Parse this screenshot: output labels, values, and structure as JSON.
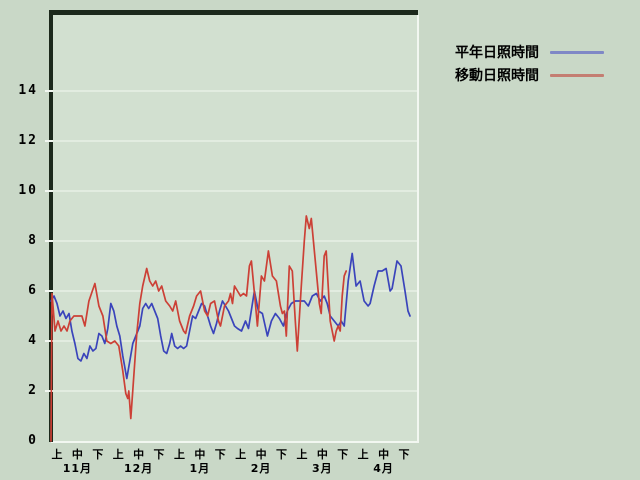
{
  "colors": {
    "bg_outer": "#c9d8c7",
    "bg_plot": "#d2e0d0",
    "frame_dark": "#1c291c",
    "frame_light": "#f2f7f1",
    "grid": "#e7efe5",
    "text": "#000000",
    "series_normal": "#3a44bb",
    "series_moving": "#cc4036",
    "legend_normal_swatch": "#7f88c6",
    "legend_moving_swatch": "#c47e72"
  },
  "legend": {
    "items": [
      {
        "label": "平年日照時間",
        "swatch_color": "#7f88c6"
      },
      {
        "label": "移動日照時間",
        "swatch_color": "#c47e72"
      }
    ]
  },
  "chart_data": {
    "type": "line",
    "title": "",
    "xlabel": "",
    "ylabel": "",
    "grid": "horizontal",
    "legend_position": "top-right-outside",
    "y_axis": {
      "ticks": [
        0,
        2,
        4,
        6,
        8,
        10,
        12,
        14
      ],
      "min": 0,
      "max": 17.2,
      "unit": "hours"
    },
    "x_axis": {
      "domain_days": [
        0,
        180
      ],
      "tick_labels": [
        "上",
        "中",
        "下",
        "上",
        "中",
        "下",
        "上",
        "中",
        "下",
        "上",
        "中",
        "下",
        "上",
        "中",
        "下",
        "上",
        "中",
        "下"
      ],
      "month_labels": [
        "11月",
        "12月",
        "1月",
        "2月",
        "3月",
        "4月"
      ],
      "month_tick_index": [
        1,
        4,
        7,
        10,
        13,
        16
      ]
    },
    "series": [
      {
        "name": "平年日照時間",
        "color": "#3a44bb",
        "points": [
          [
            0,
            5.6
          ],
          [
            1.5,
            5.8
          ],
          [
            3,
            5.5
          ],
          [
            4.5,
            5.0
          ],
          [
            6,
            5.2
          ],
          [
            7.5,
            4.9
          ],
          [
            9,
            5.1
          ],
          [
            10.5,
            4.4
          ],
          [
            12,
            3.9
          ],
          [
            13.5,
            3.3
          ],
          [
            15,
            3.2
          ],
          [
            16.5,
            3.5
          ],
          [
            18,
            3.3
          ],
          [
            19.5,
            3.8
          ],
          [
            21,
            3.6
          ],
          [
            22.5,
            3.7
          ],
          [
            24,
            4.3
          ],
          [
            25.5,
            4.2
          ],
          [
            27,
            3.9
          ],
          [
            28.5,
            4.5
          ],
          [
            30,
            5.5
          ],
          [
            31.5,
            5.2
          ],
          [
            33,
            4.6
          ],
          [
            34.5,
            4.2
          ],
          [
            36,
            3.4
          ],
          [
            38,
            2.5
          ],
          [
            39.5,
            3.2
          ],
          [
            41,
            3.9
          ],
          [
            42.5,
            4.2
          ],
          [
            44.5,
            4.6
          ],
          [
            46,
            5.3
          ],
          [
            47.5,
            5.5
          ],
          [
            49,
            5.3
          ],
          [
            50.5,
            5.5
          ],
          [
            52,
            5.2
          ],
          [
            53.5,
            4.9
          ],
          [
            55,
            4.2
          ],
          [
            56.5,
            3.6
          ],
          [
            58,
            3.5
          ],
          [
            59.5,
            3.9
          ],
          [
            60.5,
            4.3
          ],
          [
            62,
            3.8
          ],
          [
            63.5,
            3.7
          ],
          [
            65,
            3.8
          ],
          [
            66.5,
            3.7
          ],
          [
            68,
            3.8
          ],
          [
            69.5,
            4.4
          ],
          [
            71,
            5.0
          ],
          [
            72.5,
            4.9
          ],
          [
            74,
            5.2
          ],
          [
            75.5,
            5.5
          ],
          [
            77,
            5.4
          ],
          [
            78.5,
            5.0
          ],
          [
            80,
            4.6
          ],
          [
            81.5,
            4.3
          ],
          [
            83,
            4.7
          ],
          [
            84.5,
            5.2
          ],
          [
            86,
            5.6
          ],
          [
            87.5,
            5.4
          ],
          [
            89,
            5.2
          ],
          [
            90.5,
            4.9
          ],
          [
            92,
            4.6
          ],
          [
            93.5,
            4.5
          ],
          [
            95.5,
            4.4
          ],
          [
            97.5,
            4.8
          ],
          [
            99,
            4.5
          ],
          [
            102,
            6.0
          ],
          [
            104,
            5.2
          ],
          [
            106,
            5.1
          ],
          [
            108.5,
            4.2
          ],
          [
            110.5,
            4.8
          ],
          [
            112.5,
            5.1
          ],
          [
            114.5,
            4.9
          ],
          [
            116.5,
            4.6
          ],
          [
            118.5,
            5.2
          ],
          [
            120.5,
            5.5
          ],
          [
            122.5,
            5.6
          ],
          [
            124.5,
            5.6
          ],
          [
            127,
            5.6
          ],
          [
            129,
            5.4
          ],
          [
            131,
            5.8
          ],
          [
            133,
            5.9
          ],
          [
            135,
            5.6
          ],
          [
            137,
            5.8
          ],
          [
            138.5,
            5.5
          ],
          [
            140,
            5.0
          ],
          [
            142,
            4.8
          ],
          [
            144,
            4.6
          ],
          [
            145.5,
            4.8
          ],
          [
            147,
            4.6
          ],
          [
            149,
            6.4
          ],
          [
            151,
            7.5
          ],
          [
            153,
            6.2
          ],
          [
            155,
            6.4
          ],
          [
            157,
            5.6
          ],
          [
            159,
            5.4
          ],
          [
            160,
            5.5
          ],
          [
            162,
            6.2
          ],
          [
            164,
            6.8
          ],
          [
            166,
            6.8
          ],
          [
            168,
            6.9
          ],
          [
            170,
            6.0
          ],
          [
            171,
            6.1
          ],
          [
            173.5,
            7.2
          ],
          [
            175.5,
            7.0
          ],
          [
            177.5,
            6.0
          ],
          [
            179,
            5.2
          ],
          [
            180,
            5.0
          ]
        ]
      },
      {
        "name": "移動日照時間",
        "color": "#cc4036",
        "points": [
          [
            0,
            0
          ],
          [
            0.5,
            5.9
          ],
          [
            2,
            4.4
          ],
          [
            3.5,
            4.8
          ],
          [
            5,
            4.4
          ],
          [
            6.5,
            4.6
          ],
          [
            8,
            4.4
          ],
          [
            9.5,
            4.8
          ],
          [
            11.5,
            5.0
          ],
          [
            13.5,
            5.0
          ],
          [
            15.5,
            5.0
          ],
          [
            17,
            4.6
          ],
          [
            19,
            5.6
          ],
          [
            22,
            6.3
          ],
          [
            24,
            5.4
          ],
          [
            26,
            5.0
          ],
          [
            28,
            4.0
          ],
          [
            30,
            3.9
          ],
          [
            32,
            4.0
          ],
          [
            34,
            3.8
          ],
          [
            36,
            2.8
          ],
          [
            37.5,
            1.9
          ],
          [
            38.5,
            1.7
          ],
          [
            39,
            2.0
          ],
          [
            40,
            0.9
          ],
          [
            41.5,
            2.6
          ],
          [
            43,
            4.3
          ],
          [
            44.5,
            5.5
          ],
          [
            46,
            6.2
          ],
          [
            48,
            6.9
          ],
          [
            49.5,
            6.4
          ],
          [
            51,
            6.2
          ],
          [
            52.5,
            6.4
          ],
          [
            54,
            6.0
          ],
          [
            55.5,
            6.2
          ],
          [
            57.5,
            5.6
          ],
          [
            59.5,
            5.4
          ],
          [
            61,
            5.2
          ],
          [
            62.5,
            5.6
          ],
          [
            64.5,
            4.8
          ],
          [
            66.5,
            4.4
          ],
          [
            67.5,
            4.3
          ],
          [
            69.5,
            5.0
          ],
          [
            71.5,
            5.4
          ],
          [
            73,
            5.8
          ],
          [
            75,
            6.0
          ],
          [
            77,
            5.2
          ],
          [
            78.5,
            5.0
          ],
          [
            80,
            5.5
          ],
          [
            82,
            5.6
          ],
          [
            84,
            4.8
          ],
          [
            85,
            4.6
          ],
          [
            87,
            5.4
          ],
          [
            89,
            5.6
          ],
          [
            90,
            5.9
          ],
          [
            91,
            5.5
          ],
          [
            92,
            6.2
          ],
          [
            93.5,
            6.0
          ],
          [
            95,
            5.8
          ],
          [
            96.5,
            5.9
          ],
          [
            98,
            5.8
          ],
          [
            99.5,
            7.0
          ],
          [
            100.5,
            7.2
          ],
          [
            102.5,
            5.5
          ],
          [
            103.5,
            4.6
          ],
          [
            105.5,
            6.6
          ],
          [
            107,
            6.4
          ],
          [
            109,
            7.6
          ],
          [
            111,
            6.6
          ],
          [
            113,
            6.4
          ],
          [
            115,
            5.4
          ],
          [
            116,
            5.1
          ],
          [
            117,
            5.2
          ],
          [
            118,
            4.2
          ],
          [
            119.5,
            7.0
          ],
          [
            121,
            6.8
          ],
          [
            122.5,
            4.8
          ],
          [
            123.5,
            3.6
          ],
          [
            125.5,
            6.2
          ],
          [
            127,
            8.0
          ],
          [
            128,
            9.0
          ],
          [
            129.5,
            8.5
          ],
          [
            130.5,
            8.9
          ],
          [
            132.5,
            7.2
          ],
          [
            134.5,
            5.5
          ],
          [
            135.5,
            5.1
          ],
          [
            137,
            7.4
          ],
          [
            138,
            7.6
          ],
          [
            140,
            4.8
          ],
          [
            142,
            4.0
          ],
          [
            143,
            4.4
          ],
          [
            144,
            4.6
          ],
          [
            145,
            4.4
          ],
          [
            146,
            5.8
          ],
          [
            147,
            6.6
          ],
          [
            148,
            6.8
          ]
        ]
      }
    ]
  }
}
